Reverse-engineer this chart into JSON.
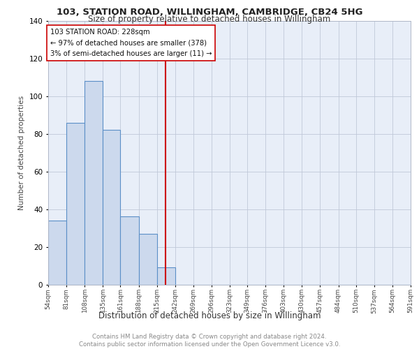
{
  "title": "103, STATION ROAD, WILLINGHAM, CAMBRIDGE, CB24 5HG",
  "subtitle": "Size of property relative to detached houses in Willingham",
  "xlabel": "Distribution of detached houses by size in Willingham",
  "ylabel": "Number of detached properties",
  "bar_lefts": [
    54,
    81,
    108,
    135,
    161,
    188,
    215,
    242,
    269,
    296,
    323,
    349,
    376,
    403,
    430,
    457,
    484,
    510,
    537,
    564
  ],
  "bar_rights": [
    81,
    108,
    135,
    161,
    188,
    215,
    242,
    269,
    296,
    323,
    349,
    376,
    403,
    430,
    457,
    484,
    510,
    537,
    564,
    591
  ],
  "bar_heights": [
    34,
    86,
    108,
    82,
    36,
    27,
    9,
    0,
    0,
    0,
    0,
    0,
    0,
    0,
    0,
    0,
    0,
    0,
    0,
    0
  ],
  "bar_color": "#ccd9ed",
  "bar_edge_color": "#5b8fc7",
  "subject_line_x": 228,
  "subject_line_color": "#cc0000",
  "annotation_line1": "103 STATION ROAD: 228sqm",
  "annotation_line2": "← 97% of detached houses are smaller (378)",
  "annotation_line3": "3% of semi-detached houses are larger (11) →",
  "ylim": [
    0,
    140
  ],
  "xlim": [
    54,
    591
  ],
  "tick_labels": [
    "54sqm",
    "81sqm",
    "108sqm",
    "135sqm",
    "161sqm",
    "188sqm",
    "215sqm",
    "242sqm",
    "269sqm",
    "296sqm",
    "323sqm",
    "349sqm",
    "376sqm",
    "403sqm",
    "430sqm",
    "457sqm",
    "484sqm",
    "510sqm",
    "537sqm",
    "564sqm",
    "591sqm"
  ],
  "tick_positions": [
    54,
    81,
    108,
    135,
    161,
    188,
    215,
    242,
    269,
    296,
    323,
    349,
    376,
    403,
    430,
    457,
    484,
    510,
    537,
    564,
    591
  ],
  "footer_text": "Contains HM Land Registry data © Crown copyright and database right 2024.\nContains public sector information licensed under the Open Government Licence v3.0.",
  "plot_bg_color": "#e8eef8",
  "grid_color": "#c0c8d8"
}
